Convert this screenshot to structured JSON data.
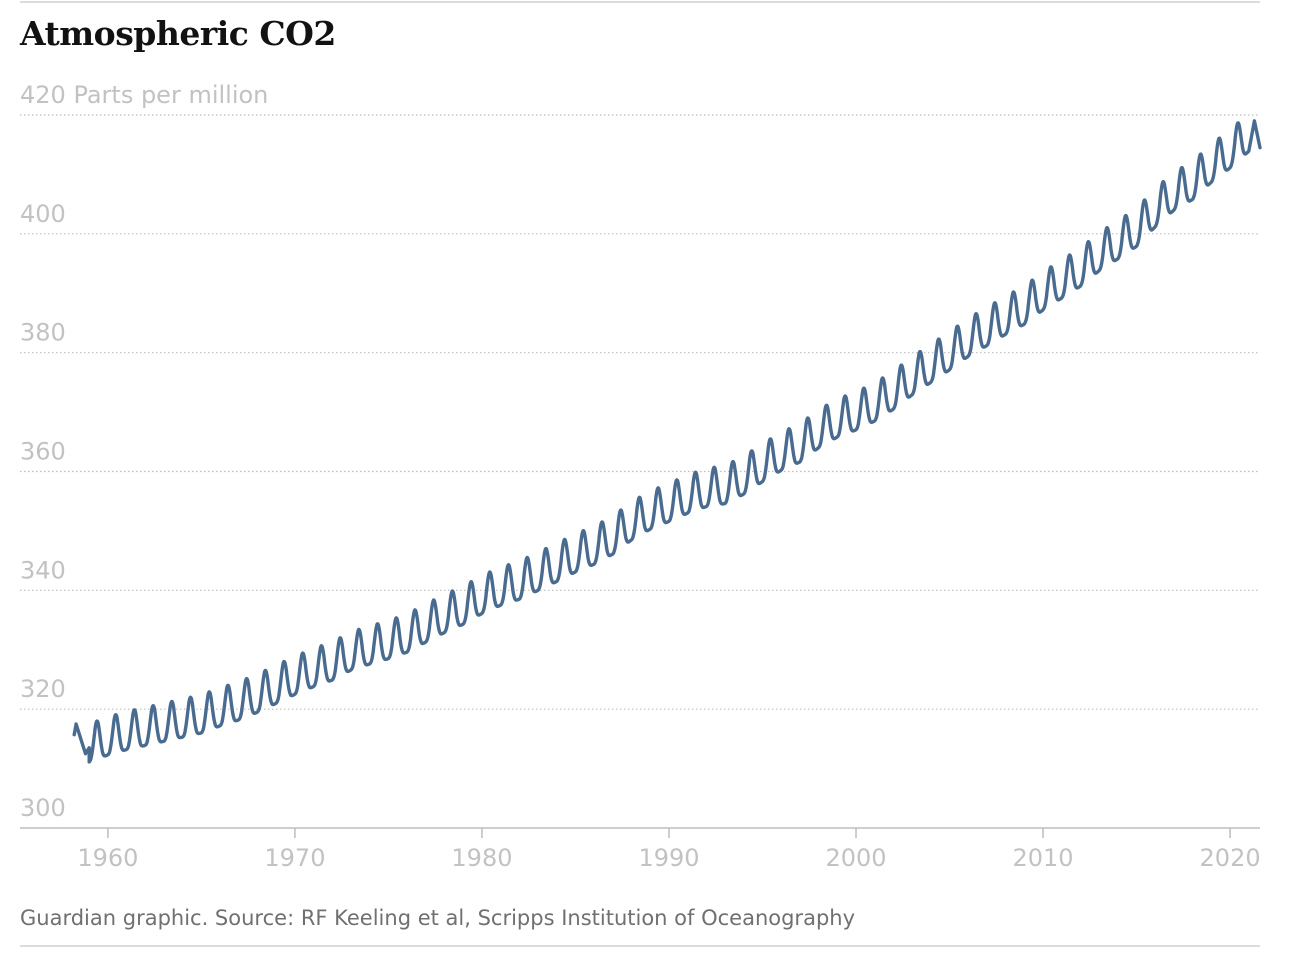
{
  "chart_data": {
    "type": "line",
    "title": "Atmospheric CO2",
    "ylabel": "Parts per million",
    "xlim": [
      1955.3,
      2021.6
    ],
    "ylim": [
      300,
      420
    ],
    "x_ticks": [
      "1960",
      "1970",
      "1980",
      "1990",
      "2000",
      "2010",
      "2020"
    ],
    "y_ticks": [
      "420",
      "400",
      "380",
      "360",
      "340",
      "320",
      "300"
    ],
    "grid": true,
    "line_color": "#4a6b90",
    "series": [
      {
        "points": [
          [
            1958.2,
            315.7
          ],
          [
            1958.3,
            317.5
          ],
          [
            1958.6,
            314.5
          ],
          [
            1958.8,
            312.5
          ],
          [
            1959.0,
            313.5
          ],
          [
            1960.0,
            314.7
          ],
          [
            1961.0,
            315.6
          ],
          [
            1962.0,
            316.3
          ],
          [
            1963.0,
            317.0
          ],
          [
            1964.0,
            317.7
          ],
          [
            1965.0,
            318.4
          ],
          [
            1966.0,
            319.6
          ],
          [
            1967.0,
            320.6
          ],
          [
            1968.0,
            321.9
          ],
          [
            1969.0,
            323.4
          ],
          [
            1970.0,
            324.9
          ],
          [
            1971.0,
            326.2
          ],
          [
            1972.0,
            327.3
          ],
          [
            1973.0,
            329.0
          ],
          [
            1974.0,
            330.0
          ],
          [
            1975.0,
            330.9
          ],
          [
            1976.0,
            332.0
          ],
          [
            1977.0,
            333.7
          ],
          [
            1978.0,
            335.3
          ],
          [
            1979.0,
            336.7
          ],
          [
            1980.0,
            338.5
          ],
          [
            1981.0,
            339.9
          ],
          [
            1982.0,
            340.9
          ],
          [
            1983.0,
            342.4
          ],
          [
            1984.0,
            343.9
          ],
          [
            1985.0,
            345.5
          ],
          [
            1986.0,
            346.8
          ],
          [
            1987.0,
            348.5
          ],
          [
            1988.0,
            350.9
          ],
          [
            1989.0,
            352.7
          ],
          [
            1990.0,
            354.0
          ],
          [
            1991.0,
            355.4
          ],
          [
            1992.0,
            356.5
          ],
          [
            1993.0,
            357.0
          ],
          [
            1994.0,
            358.6
          ],
          [
            1995.0,
            360.7
          ],
          [
            1996.0,
            362.6
          ],
          [
            1997.0,
            364.0
          ],
          [
            1998.0,
            366.4
          ],
          [
            1999.0,
            368.2
          ],
          [
            2000.0,
            369.4
          ],
          [
            2001.0,
            370.9
          ],
          [
            2002.0,
            372.9
          ],
          [
            2003.0,
            375.3
          ],
          [
            2004.0,
            377.4
          ],
          [
            2005.0,
            379.5
          ],
          [
            2006.0,
            381.8
          ],
          [
            2007.0,
            383.6
          ],
          [
            2008.0,
            385.5
          ],
          [
            2009.0,
            387.2
          ],
          [
            2010.0,
            389.6
          ],
          [
            2011.0,
            391.6
          ],
          [
            2012.0,
            393.6
          ],
          [
            2013.0,
            396.2
          ],
          [
            2014.0,
            398.2
          ],
          [
            2015.0,
            400.3
          ],
          [
            2016.0,
            403.6
          ],
          [
            2017.0,
            406.4
          ],
          [
            2018.0,
            408.2
          ],
          [
            2019.0,
            411.1
          ],
          [
            2020.0,
            413.5
          ],
          [
            2021.0,
            416.3
          ],
          [
            2021.3,
            419.0
          ],
          [
            2021.6,
            414.5
          ]
        ],
        "seasonal_amplitude": 3.2,
        "seasonal_peak_month": 5
      }
    ]
  },
  "footer": {
    "source": "Guardian graphic. Source: RF Keeling et al, Scripps Institution of Oceanography"
  }
}
